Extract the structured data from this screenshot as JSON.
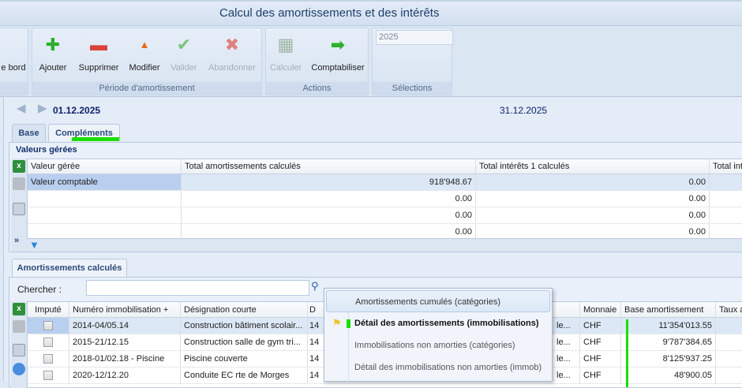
{
  "window": {
    "title": "Calcul des amortissements et des intérêts"
  },
  "ribbon": {
    "partial_label": "e bord",
    "groups": [
      {
        "label": "Période d'amortissement",
        "buttons": [
          {
            "label": "Ajouter",
            "icon": "plus-icon",
            "enabled": true
          },
          {
            "label": "Supprimer",
            "icon": "minus-icon",
            "enabled": true
          },
          {
            "label": "Modifier",
            "icon": "triangle-up-icon",
            "enabled": true
          },
          {
            "label": "Valider",
            "icon": "check-icon",
            "enabled": false
          },
          {
            "label": "Abandonner",
            "icon": "x-icon",
            "enabled": false
          }
        ]
      },
      {
        "label": "Actions",
        "buttons": [
          {
            "label": "Calculer",
            "icon": "calculator-icon",
            "enabled": false
          },
          {
            "label": "Comptabiliser",
            "icon": "post-arrow-icon",
            "enabled": true
          }
        ]
      },
      {
        "label": "Sélections",
        "year_value": "2025"
      }
    ]
  },
  "period": {
    "start": "01.12.2025",
    "end": "31.12.2025"
  },
  "tabs": [
    {
      "label": "Base"
    },
    {
      "label": "Compléments",
      "active": true
    }
  ],
  "valeurs": {
    "title": "Valeurs gérées",
    "columns": [
      "Valeur gérée",
      "Total amortissements calculés",
      "Total intérêts 1 calculés",
      "Total int"
    ],
    "rows": [
      {
        "name": "Valeur comptable",
        "amort": "918'948.67",
        "int1": "0.00"
      },
      {
        "name": "",
        "amort": "0.00",
        "int1": "0.00"
      },
      {
        "name": "",
        "amort": "0.00",
        "int1": "0.00"
      },
      {
        "name": "",
        "amort": "0.00",
        "int1": "0.00"
      }
    ],
    "more_label": "»"
  },
  "amort": {
    "tab": "Amortissements calculés",
    "search_label": "Chercher :",
    "search_value": "",
    "columns": [
      "Imputé",
      "Numéro immobilisation +",
      "Désignation courte",
      "D",
      "Monnaie",
      "Base amortissement",
      "Taux amo"
    ],
    "rows": [
      {
        "imputed": false,
        "num": "2014-04/05.14",
        "des": "Construction bâtiment scolair...",
        "d": "14",
        "trunc": "le...",
        "cur": "CHF",
        "base": "11'354'013.55"
      },
      {
        "imputed": false,
        "num": "2015-21/12.15",
        "des": "Construction salle de gym tri...",
        "d": "14",
        "trunc": "le...",
        "cur": "CHF",
        "base": "9'787'384.65"
      },
      {
        "imputed": false,
        "num": "2018-01/02.18 - Piscine",
        "des": "Piscine couverte",
        "d": "14",
        "trunc": "le...",
        "cur": "CHF",
        "base": "8'125'937.25"
      },
      {
        "imputed": false,
        "num": "2020-12/12.20",
        "des": "Conduite EC rte de Morges",
        "d": "14",
        "trunc": "le...",
        "cur": "CHF",
        "base": "48'900.05"
      }
    ]
  },
  "menu": {
    "items": [
      {
        "label": "Amortissements cumulés (catégories)",
        "highlighted": true
      },
      {
        "label": "Détail des amortissements (immobilisations)",
        "selected": true
      },
      {
        "label": "Immobilisations non amorties (catégories)"
      },
      {
        "label": "Détail des immobilisations non amorties (immob)"
      }
    ]
  },
  "colors": {
    "accent": "#10226b",
    "highlight_mark": "#19e000",
    "selection": "#b9cff0"
  }
}
